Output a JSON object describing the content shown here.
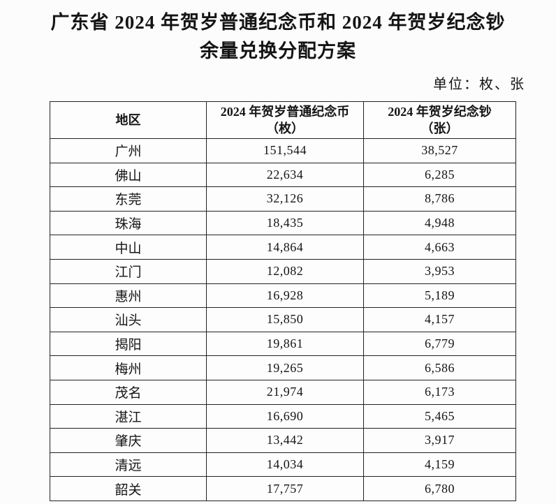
{
  "page": {
    "title_line1": "广东省 2024 年贺岁普通纪念币和 2024 年贺岁纪念钞",
    "title_line2": "余量兑换分配方案",
    "unit_note": "单位：枚、张"
  },
  "table": {
    "columns": [
      {
        "label": "地区",
        "sublabel": ""
      },
      {
        "label": "2024 年贺岁普通纪念币",
        "sublabel": "（枚）"
      },
      {
        "label": "2024 年贺岁纪念钞",
        "sublabel": "（张）"
      }
    ],
    "rows": [
      {
        "region": "广州",
        "coins": "151,544",
        "notes": "38,527"
      },
      {
        "region": "佛山",
        "coins": "22,634",
        "notes": "6,285"
      },
      {
        "region": "东莞",
        "coins": "32,126",
        "notes": "8,786"
      },
      {
        "region": "珠海",
        "coins": "18,435",
        "notes": "4,948"
      },
      {
        "region": "中山",
        "coins": "14,864",
        "notes": "4,663"
      },
      {
        "region": "江门",
        "coins": "12,082",
        "notes": "3,953"
      },
      {
        "region": "惠州",
        "coins": "16,928",
        "notes": "5,189"
      },
      {
        "region": "汕头",
        "coins": "15,850",
        "notes": "4,157"
      },
      {
        "region": "揭阳",
        "coins": "19,861",
        "notes": "6,779"
      },
      {
        "region": "梅州",
        "coins": "19,265",
        "notes": "6,586"
      },
      {
        "region": "茂名",
        "coins": "21,974",
        "notes": "6,173"
      },
      {
        "region": "湛江",
        "coins": "16,690",
        "notes": "5,465"
      },
      {
        "region": "肇庆",
        "coins": "13,442",
        "notes": "3,917"
      },
      {
        "region": "清远",
        "coins": "14,034",
        "notes": "4,159"
      },
      {
        "region": "韶关",
        "coins": "17,757",
        "notes": "6,780"
      }
    ]
  },
  "colors": {
    "background": "#fcfcfc",
    "text": "#141414",
    "border": "#222222"
  }
}
